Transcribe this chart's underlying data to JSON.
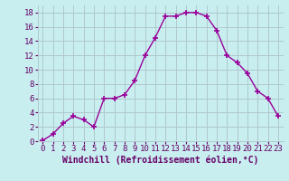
{
  "x": [
    0,
    1,
    2,
    3,
    4,
    5,
    6,
    7,
    8,
    9,
    10,
    11,
    12,
    13,
    14,
    15,
    16,
    17,
    18,
    19,
    20,
    21,
    22,
    23
  ],
  "y": [
    0.1,
    1.0,
    2.5,
    3.5,
    3.0,
    2.0,
    6.0,
    6.0,
    6.5,
    8.5,
    12.0,
    14.5,
    17.5,
    17.5,
    18.0,
    18.0,
    17.5,
    15.5,
    12.0,
    11.0,
    9.5,
    7.0,
    6.0,
    3.5
  ],
  "xlabel": "Windchill (Refroidissement éolien,°C)",
  "xlim": [
    -0.5,
    23.5
  ],
  "ylim": [
    0,
    19
  ],
  "yticks": [
    0,
    2,
    4,
    6,
    8,
    10,
    12,
    14,
    16,
    18
  ],
  "xticks": [
    0,
    1,
    2,
    3,
    4,
    5,
    6,
    7,
    8,
    9,
    10,
    11,
    12,
    13,
    14,
    15,
    16,
    17,
    18,
    19,
    20,
    21,
    22,
    23
  ],
  "line_color": "#990099",
  "marker": "+",
  "bg_color": "#c8eef0",
  "grid_color": "#b0c8cc",
  "tick_label_color": "#660066",
  "xlabel_color": "#660066",
  "xlabel_fontsize": 7,
  "tick_fontsize": 6.5
}
